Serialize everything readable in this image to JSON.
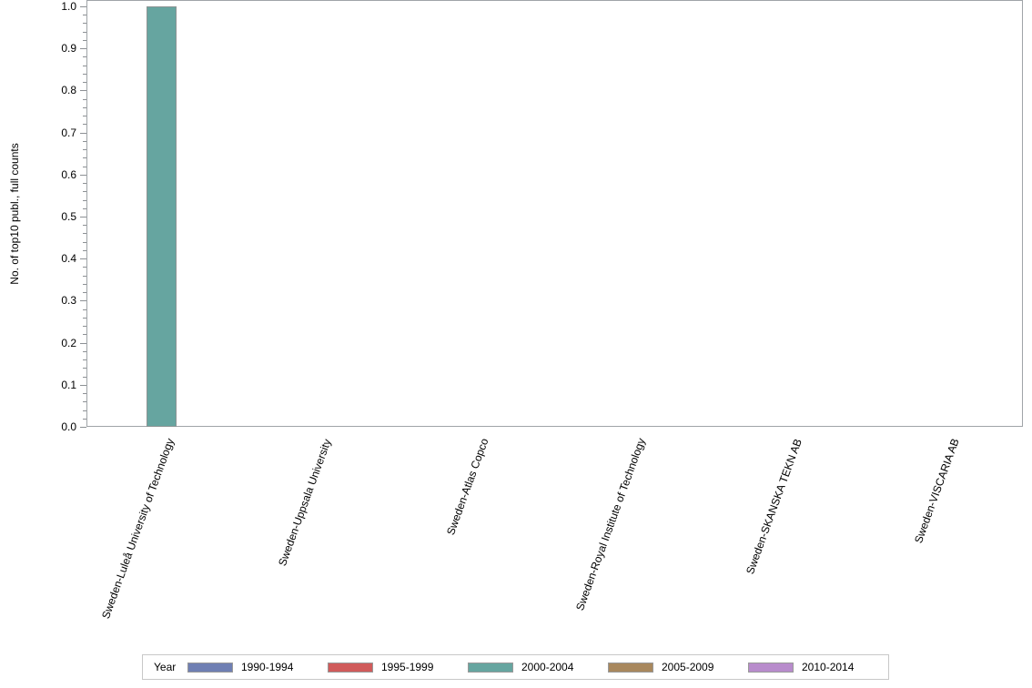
{
  "chart_data": {
    "type": "bar",
    "title": "",
    "xlabel": "",
    "ylabel": "No. of top10 publ., full counts",
    "ylim": [
      0,
      1.0
    ],
    "yticks": [
      "0.0",
      "0.1",
      "0.2",
      "0.3",
      "0.4",
      "0.5",
      "0.6",
      "0.7",
      "0.8",
      "0.9",
      "1.0"
    ],
    "grid": false,
    "legend_position": "bottom",
    "legend_title": "Year",
    "categories": [
      "Sweden-Luleå University of Technology",
      "Sweden-Uppsala University",
      "Sweden-Atlas  Copco",
      "Sweden-Royal Institute  of Technology",
      "Sweden-SKANSKA TEKN AB",
      "Sweden-VISCARIA AB"
    ],
    "series": [
      {
        "name": "1990-1994",
        "color": "#6f7fb3",
        "values": [
          0,
          0,
          0,
          0,
          0,
          0
        ]
      },
      {
        "name": "1995-1999",
        "color": "#d05b5b",
        "values": [
          0,
          0,
          0,
          0,
          0,
          0
        ]
      },
      {
        "name": "2000-2004",
        "color": "#66a5a0",
        "values": [
          1,
          0,
          0,
          0,
          0,
          0
        ]
      },
      {
        "name": "2005-2009",
        "color": "#a8885e",
        "values": [
          0,
          0,
          0,
          0,
          0,
          0
        ]
      },
      {
        "name": "2010-2014",
        "color": "#b88ccc",
        "values": [
          0,
          0,
          0,
          0,
          0,
          0
        ]
      }
    ]
  }
}
